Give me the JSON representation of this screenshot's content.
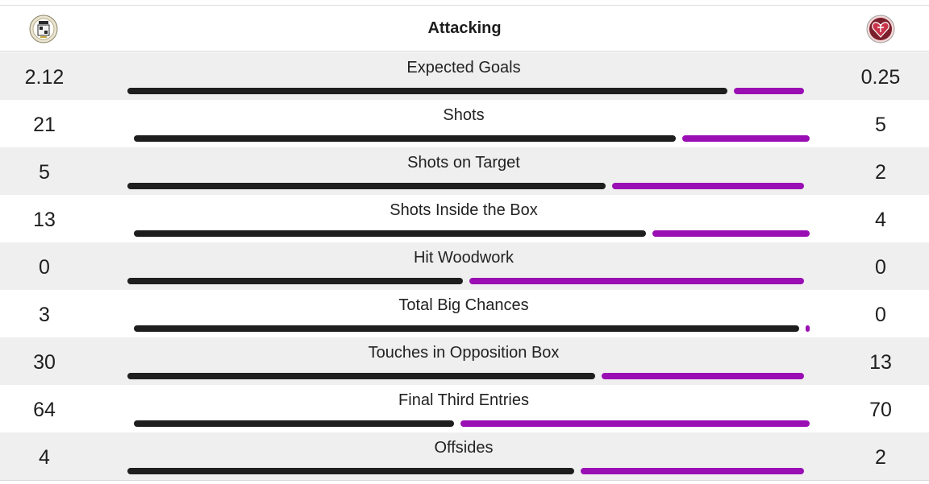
{
  "header": {
    "title": "Attacking",
    "home_crest": "st-mirren-crest-icon",
    "away_crest": "hearts-crest-icon"
  },
  "colors": {
    "home": "#1e1e1e",
    "away": "#9a0fb4"
  },
  "stats": [
    {
      "label": "Expected Goals",
      "home": "2.12",
      "away": "0.25",
      "home_share": 0.895
    },
    {
      "label": "Shots",
      "home": "21",
      "away": "5",
      "home_share": 0.81
    },
    {
      "label": "Shots on Target",
      "home": "5",
      "away": "2",
      "home_share": 0.714
    },
    {
      "label": "Shots Inside the Box",
      "home": "13",
      "away": "4",
      "home_share": 0.765
    },
    {
      "label": "Hit Woodwork",
      "home": "0",
      "away": "0",
      "home_share": 0.5
    },
    {
      "label": "Total Big Chances",
      "home": "3",
      "away": "0",
      "home_share": 1.0
    },
    {
      "label": "Touches in Opposition Box",
      "home": "30",
      "away": "13",
      "home_share": 0.698
    },
    {
      "label": "Final Third Entries",
      "home": "64",
      "away": "70",
      "home_share": 0.478
    },
    {
      "label": "Offsides",
      "home": "4",
      "away": "2",
      "home_share": 0.667
    }
  ]
}
